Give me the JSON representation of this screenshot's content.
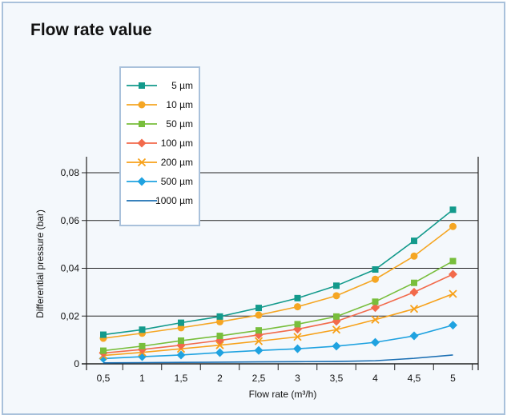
{
  "title": "Flow rate value",
  "chart_data": {
    "type": "line",
    "title": "Flow rate value",
    "xlabel": "Flow rate (m³/h)",
    "ylabel": "Differential pressure (bar)",
    "x": [
      0.5,
      1,
      1.5,
      2,
      2.5,
      3,
      3.5,
      4,
      4.5,
      5
    ],
    "x_tick_labels": [
      "0,5",
      "1",
      "1,5",
      "2",
      "2,5",
      "3",
      "3,5",
      "4",
      "4,5",
      "5"
    ],
    "y_ticks": [
      0,
      0.02,
      0.04,
      0.06,
      0.08
    ],
    "y_tick_labels": [
      "0",
      "0,02",
      "0,04",
      "0,06",
      "0,08"
    ],
    "ylim": [
      0,
      0.08
    ],
    "grid": "horizontal",
    "legend_position": "top-left",
    "series": [
      {
        "name": "5 µm",
        "color": "#139a8c",
        "marker": "square",
        "values": [
          0.0122,
          0.0143,
          0.0172,
          0.0198,
          0.0234,
          0.0275,
          0.0327,
          0.0395,
          0.0515,
          0.0645
        ]
      },
      {
        "name": "10 µm",
        "color": "#f5a623",
        "marker": "circle",
        "values": [
          0.0107,
          0.0128,
          0.0151,
          0.0176,
          0.0204,
          0.0239,
          0.0285,
          0.0354,
          0.0451,
          0.0575
        ]
      },
      {
        "name": "50 µm",
        "color": "#78be3c",
        "marker": "square",
        "values": [
          0.0055,
          0.0074,
          0.0097,
          0.0117,
          0.014,
          0.0166,
          0.0198,
          0.026,
          0.0339,
          0.043
        ]
      },
      {
        "name": "100 µm",
        "color": "#f26a4b",
        "marker": "diamond",
        "values": [
          0.0045,
          0.006,
          0.0078,
          0.0098,
          0.0121,
          0.0145,
          0.0178,
          0.0235,
          0.03,
          0.0375
        ]
      },
      {
        "name": "200 µm",
        "color": "#f7a11a",
        "marker": "x",
        "values": [
          0.0035,
          0.0048,
          0.0063,
          0.0078,
          0.0095,
          0.0113,
          0.0143,
          0.0185,
          0.023,
          0.0293
        ]
      },
      {
        "name": "500 µm",
        "color": "#1fa2e0",
        "marker": "diamond",
        "values": [
          0.0022,
          0.003,
          0.0037,
          0.0047,
          0.0056,
          0.0063,
          0.0074,
          0.009,
          0.0117,
          0.0162
        ]
      },
      {
        "name": "1000 µm",
        "color": "#1b6fb3",
        "marker": "none",
        "values": [
          0.0004,
          0.0005,
          0.0006,
          0.0007,
          0.0008,
          0.0009,
          0.001,
          0.0013,
          0.0023,
          0.0037
        ]
      }
    ]
  }
}
